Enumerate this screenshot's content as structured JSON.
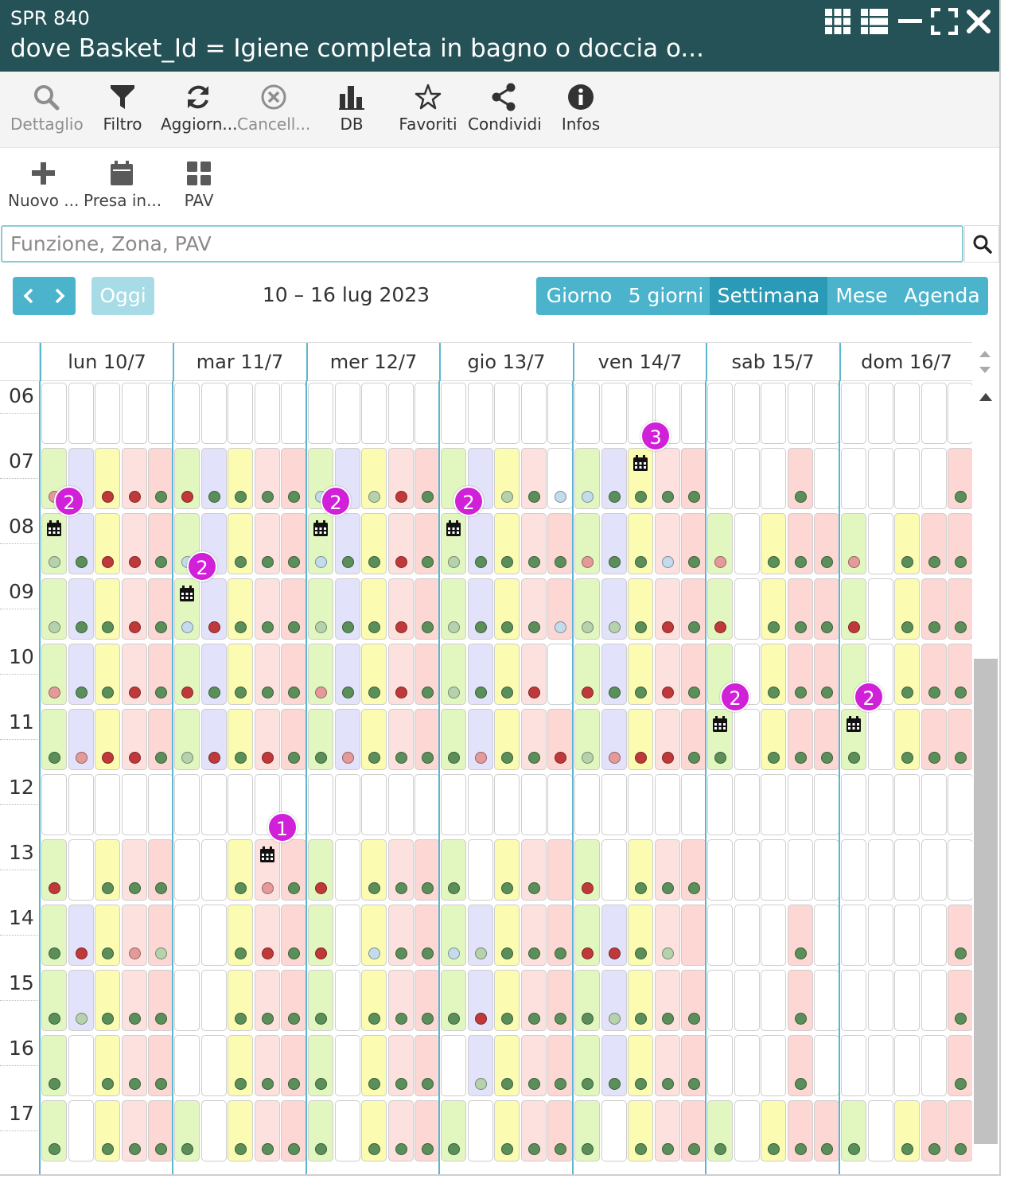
{
  "window": {
    "code": "SPR 840",
    "title": "dove Basket_Id = Igiene completa in bagno o doccia o..."
  },
  "window_controls": [
    {
      "name": "grid-view-icon"
    },
    {
      "name": "list-view-icon"
    },
    {
      "name": "minimize-icon"
    },
    {
      "name": "maximize-icon"
    },
    {
      "name": "close-icon"
    }
  ],
  "toolbar_primary": [
    {
      "label": "Dettaglio",
      "icon": "search-icon",
      "enabled": false
    },
    {
      "label": "Filtro",
      "icon": "filter-icon",
      "enabled": true
    },
    {
      "label": "Aggiorn...",
      "icon": "refresh-icon",
      "enabled": true
    },
    {
      "label": "Cancell...",
      "icon": "cancel-circle-icon",
      "enabled": false
    },
    {
      "label": "DB",
      "icon": "bar-chart-icon",
      "enabled": true
    },
    {
      "label": "Favoriti",
      "icon": "star-icon",
      "enabled": true
    },
    {
      "label": "Condividi",
      "icon": "share-icon",
      "enabled": true
    },
    {
      "label": "Infos",
      "icon": "info-icon",
      "enabled": true
    }
  ],
  "toolbar_secondary": [
    {
      "label": "Nuovo ...",
      "icon": "plus-icon"
    },
    {
      "label": "Presa in...",
      "icon": "calendar-icon"
    },
    {
      "label": "PAV",
      "icon": "tiles-icon"
    }
  ],
  "search": {
    "placeholder": "Funzione, Zona, PAV",
    "value": ""
  },
  "calendar": {
    "today_label": "Oggi",
    "range": "10 – 16 lug 2023",
    "views": [
      {
        "label": "Giorno",
        "active": false
      },
      {
        "label": "5 giorni",
        "active": false
      },
      {
        "label": "Settimana",
        "active": true
      },
      {
        "label": "Mese",
        "active": false
      },
      {
        "label": "Agenda",
        "active": false
      }
    ],
    "days": [
      "lun 10/7",
      "mar 11/7",
      "mer 12/7",
      "gio 13/7",
      "ven 14/7",
      "sab 15/7",
      "dom 16/7"
    ],
    "hours": [
      "06",
      "07",
      "08",
      "09",
      "10",
      "11",
      "12",
      "13",
      "14",
      "15",
      "16",
      "17"
    ],
    "colors": {
      "header": "#245257",
      "accent": "#4bb4cc",
      "accent_active": "#2a9ab7",
      "badge": "#d020d8",
      "slot_green": "#e2f7c0",
      "slot_lavender": "#e2e2fa",
      "slot_yellow": "#fbfbb2",
      "slot_pink": "#fde1de",
      "slot_rose": "#fcd7d4",
      "dot_green": "#5a8f5a",
      "dot_red": "#c0393a",
      "dot_pink": "#e59a9a",
      "dot_lightgreen": "#b6d2ad",
      "dot_lightblue": "#c2dceb"
    },
    "slot_palette_legend": "g=green l=lavender y=yellow p=pink r=rose w=white",
    "dot_legend": "g=dark green r=red p=pink l=light green b=light blue",
    "rows": [
      {
        "hour": "06",
        "days": [
          "wwwww",
          "wwwww",
          "wwwww",
          "wwwww",
          "wwwww",
          "wwwww",
          "wwwww"
        ],
        "dots": [
          "-----",
          "-----",
          "-----",
          "-----",
          "-----",
          "-----",
          "-----"
        ]
      },
      {
        "hour": "07",
        "days": [
          "glypr",
          "glypr",
          "glypr",
          "glypw",
          "glypr",
          "wwwrw",
          "wwwwr"
        ],
        "dots": [
          "p-rrg",
          "rgggg",
          "b-lrg",
          "--lgb",
          "bgggg",
          "---g-",
          "----g"
        ]
      },
      {
        "hour": "08",
        "days": [
          "glypr",
          "glypr",
          "glypr",
          "glypr",
          "glypr",
          "gwyrr",
          "gwyrr"
        ],
        "dots": [
          "lgrrg",
          "b-ggg",
          "bggrg",
          "lgggg",
          "pggbg",
          "p-ggg",
          "p-ggg"
        ]
      },
      {
        "hour": "09",
        "days": [
          "glypr",
          "glypr",
          "glypr",
          "glypr",
          "glypr",
          "gwyrr",
          "gwyrr"
        ],
        "dots": [
          "lggrg",
          "brggg",
          "lggrg",
          "lgggb",
          "llgrg",
          "r-ggg",
          "r-ggg"
        ]
      },
      {
        "hour": "10",
        "days": [
          "glypr",
          "glypr",
          "glypr",
          "glypw",
          "glypr",
          "gwyrr",
          "gwyrr"
        ],
        "dots": [
          "pggrg",
          "rgggg",
          "pggrg",
          "lggr-",
          "rggrg",
          "--ggg",
          "--ggg"
        ]
      },
      {
        "hour": "11",
        "days": [
          "glypr",
          "glypr",
          "glypr",
          "glypr",
          "glypr",
          "gwyrr",
          "gwyrr"
        ],
        "dots": [
          "gprrg",
          "lrgrg",
          "gpggg",
          "gpggr",
          "lprrg",
          "g-ggg",
          "g-ggg"
        ]
      },
      {
        "hour": "12",
        "days": [
          "wwwww",
          "wwwww",
          "wwwww",
          "wwwww",
          "wwwww",
          "wwwww",
          "wwwww"
        ],
        "dots": [
          "-----",
          "-----",
          "-----",
          "-----",
          "-----",
          "-----",
          "-----"
        ]
      },
      {
        "hour": "13",
        "days": [
          "gwypr",
          "wwypr",
          "gwypr",
          "gwypr",
          "gwypr",
          "wwwww",
          "wwwww"
        ],
        "dots": [
          "r-ggg",
          "--gpg",
          "r-ggg",
          "g-gg-",
          "r-ggg",
          "-----",
          "-----"
        ]
      },
      {
        "hour": "14",
        "days": [
          "glypr",
          "wwypr",
          "gwypr",
          "glypr",
          "glypr",
          "wwwrw",
          "wwwwr"
        ],
        "dots": [
          "grgpl",
          "--grg",
          "r-bgg",
          "blggg",
          "rrgl-",
          "---g-",
          "----g"
        ]
      },
      {
        "hour": "15",
        "days": [
          "glypr",
          "wwypr",
          "gwypr",
          "glypr",
          "glypr",
          "wwwrw",
          "wwwwr"
        ],
        "dots": [
          "glggg",
          "--ggg",
          "g-ggg",
          "grggg",
          "glggg",
          "---g-",
          "----g"
        ]
      },
      {
        "hour": "16",
        "days": [
          "gwypr",
          "wwypr",
          "gwypr",
          "wlypr",
          "glypr",
          "wwwrw",
          "wwwwr"
        ],
        "dots": [
          "g-ggg",
          "--ggg",
          "g-ggg",
          "-lggg",
          "ggggg",
          "---g-",
          "----g"
        ]
      },
      {
        "hour": "17",
        "days": [
          "gwypr",
          "gwypr",
          "gwypr",
          "gwypr",
          "gwypr",
          "gwyrr",
          "gwyrr"
        ],
        "dots": [
          "g-ggg",
          "g-ggg",
          "g-ggg",
          "g-ggg",
          "g-ggg",
          "g-ggg",
          "g-ggg"
        ]
      }
    ],
    "events": [
      {
        "day": 0,
        "hour": "07",
        "slot": 0,
        "count": "2"
      },
      {
        "day": 1,
        "hour": "08",
        "slot": 0,
        "count": "2"
      },
      {
        "day": 2,
        "hour": "07",
        "slot": 0,
        "count": "2"
      },
      {
        "day": 3,
        "hour": "07",
        "slot": 0,
        "count": "2"
      },
      {
        "day": 4,
        "hour": "06",
        "slot": 2,
        "count": "3"
      },
      {
        "day": 5,
        "hour": "10",
        "slot": 0,
        "count": "2"
      },
      {
        "day": 6,
        "hour": "10",
        "slot": 0,
        "count": "2"
      },
      {
        "day": 1,
        "hour": "12",
        "slot": 3,
        "count": "1"
      }
    ]
  }
}
